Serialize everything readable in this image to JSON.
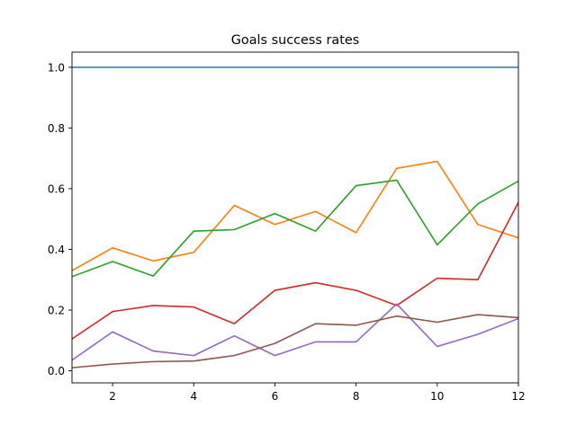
{
  "chart_data": {
    "type": "line",
    "title": "Goals success rates",
    "xlabel": "",
    "ylabel": "",
    "xlim": [
      1,
      12
    ],
    "ylim": [
      -0.04,
      1.05
    ],
    "x": [
      1,
      2,
      3,
      4,
      5,
      6,
      7,
      8,
      9,
      10,
      11,
      12
    ],
    "x_ticks": [
      "2",
      "4",
      "6",
      "8",
      "10",
      "12"
    ],
    "y_ticks": [
      "0.0",
      "0.2",
      "0.4",
      "0.6",
      "0.8",
      "1.0"
    ],
    "grid": false,
    "legend": "none",
    "series": [
      {
        "color": "#1f77b4",
        "values": [
          1.0,
          1.0,
          1.0,
          1.0,
          1.0,
          1.0,
          1.0,
          1.0,
          1.0,
          1.0,
          1.0,
          1.0
        ]
      },
      {
        "color": "#ff7f0e",
        "values": [
          0.33,
          0.405,
          0.362,
          0.39,
          0.545,
          0.482,
          0.525,
          0.455,
          0.667,
          0.69,
          0.482,
          0.438
        ]
      },
      {
        "color": "#2ca02c",
        "values": [
          0.31,
          0.36,
          0.312,
          0.46,
          0.465,
          0.518,
          0.46,
          0.61,
          0.628,
          0.415,
          0.55,
          0.625
        ]
      },
      {
        "color": "#d62728",
        "values": [
          0.105,
          0.195,
          0.215,
          0.21,
          0.155,
          0.265,
          0.29,
          0.265,
          0.215,
          0.305,
          0.3,
          0.555
        ]
      },
      {
        "color": "#9467bd",
        "values": [
          0.035,
          0.128,
          0.065,
          0.05,
          0.115,
          0.05,
          0.095,
          0.095,
          0.22,
          0.08,
          0.12,
          0.172
        ]
      },
      {
        "color": "#8c564b",
        "values": [
          0.01,
          0.022,
          0.03,
          0.032,
          0.05,
          0.09,
          0.155,
          0.15,
          0.18,
          0.16,
          0.185,
          0.175
        ]
      }
    ]
  }
}
